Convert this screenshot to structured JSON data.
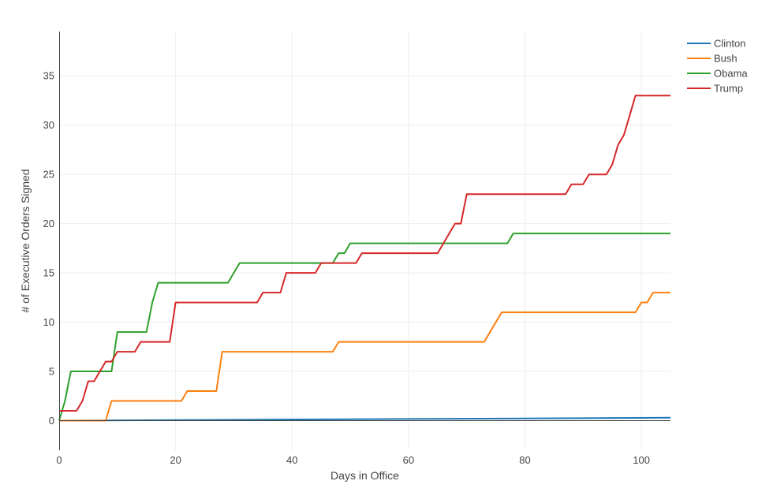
{
  "chart_data": {
    "type": "line",
    "title": "",
    "xlabel": "Days in Office",
    "ylabel": "# of Executive Orders Signed",
    "xlim": [
      0,
      105
    ],
    "ylim": [
      -3,
      39.5
    ],
    "xticks": [
      0,
      20,
      40,
      60,
      80,
      100
    ],
    "yticks": [
      0,
      5,
      10,
      15,
      20,
      25,
      30,
      35
    ],
    "grid": true,
    "legend_position": "top-right",
    "series": [
      {
        "name": "Clinton",
        "color": "#1f77b4",
        "points": [
          [
            0,
            0
          ],
          [
            105,
            0.3
          ]
        ]
      },
      {
        "name": "Bush",
        "color": "#ff7f0e",
        "points": [
          [
            0,
            0
          ],
          [
            8,
            0
          ],
          [
            9,
            2
          ],
          [
            21,
            2
          ],
          [
            22,
            3
          ],
          [
            27,
            3
          ],
          [
            28,
            7
          ],
          [
            47,
            7
          ],
          [
            48,
            8
          ],
          [
            73,
            8
          ],
          [
            76,
            11
          ],
          [
            99,
            11
          ],
          [
            100,
            12
          ],
          [
            101,
            12
          ],
          [
            102,
            13
          ],
          [
            105,
            13
          ]
        ]
      },
      {
        "name": "Obama",
        "color": "#2ca02c",
        "points": [
          [
            0,
            0
          ],
          [
            1,
            2
          ],
          [
            2,
            5
          ],
          [
            9,
            5
          ],
          [
            10,
            9
          ],
          [
            15,
            9
          ],
          [
            16,
            12
          ],
          [
            17,
            14
          ],
          [
            29,
            14
          ],
          [
            31,
            16
          ],
          [
            47,
            16
          ],
          [
            48,
            17
          ],
          [
            49,
            17
          ],
          [
            50,
            18
          ],
          [
            77,
            18
          ],
          [
            78,
            19
          ],
          [
            105,
            19
          ]
        ]
      },
      {
        "name": "Trump",
        "color": "#d62728",
        "points": [
          [
            0,
            1
          ],
          [
            3,
            1
          ],
          [
            4,
            2
          ],
          [
            5,
            4
          ],
          [
            6,
            4
          ],
          [
            8,
            6
          ],
          [
            9,
            6
          ],
          [
            10,
            7
          ],
          [
            13,
            7
          ],
          [
            14,
            8
          ],
          [
            19,
            8
          ],
          [
            20,
            12
          ],
          [
            34,
            12
          ],
          [
            35,
            13
          ],
          [
            38,
            13
          ],
          [
            39,
            15
          ],
          [
            44,
            15
          ],
          [
            45,
            16
          ],
          [
            51,
            16
          ],
          [
            52,
            17
          ],
          [
            65,
            17
          ],
          [
            68,
            20
          ],
          [
            69,
            20
          ],
          [
            70,
            23
          ],
          [
            87,
            23
          ],
          [
            88,
            24
          ],
          [
            90,
            24
          ],
          [
            91,
            25
          ],
          [
            94,
            25
          ],
          [
            95,
            26
          ],
          [
            96,
            28
          ],
          [
            97,
            29
          ],
          [
            99,
            33
          ],
          [
            105,
            33
          ]
        ]
      }
    ]
  }
}
